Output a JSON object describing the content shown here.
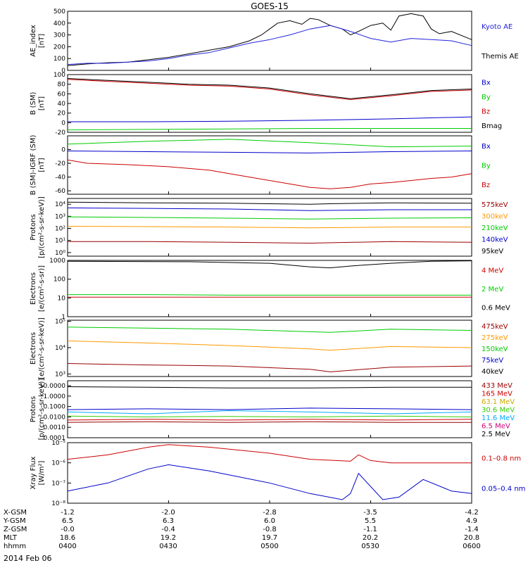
{
  "title": "GOES-15",
  "colors": {
    "black": "#000000",
    "red": "#cc0000",
    "green": "#00cc00",
    "blue": "#0000cc",
    "orange": "#ff9900",
    "dark_red": "#990000",
    "lime": "#33cc00",
    "cyan": "#00aaff",
    "gold": "#ccaa00",
    "magenta": "#cc0077",
    "ae_blue": "#2222dd"
  },
  "chart_data": [
    {
      "type": "line",
      "ylabel": [
        "AE_index",
        "[nT]"
      ],
      "scale": "linear",
      "ylim": [
        0,
        500
      ],
      "yticks": [
        0,
        100,
        200,
        300,
        400,
        500
      ],
      "legend": [
        {
          "text": "Kyoto AE",
          "color": "ae_blue"
        },
        {
          "text": "Themis AE",
          "color": "black"
        }
      ],
      "series": [
        {
          "color": "black",
          "x": [
            0,
            0.05,
            0.1,
            0.15,
            0.2,
            0.25,
            0.3,
            0.35,
            0.4,
            0.45,
            0.48,
            0.5,
            0.52,
            0.55,
            0.58,
            0.6,
            0.62,
            0.65,
            0.68,
            0.7,
            0.72,
            0.75,
            0.78,
            0.8,
            0.82,
            0.85,
            0.88,
            0.9,
            0.92,
            0.95,
            1
          ],
          "values": [
            40,
            55,
            65,
            70,
            90,
            110,
            140,
            170,
            200,
            250,
            300,
            350,
            400,
            420,
            390,
            440,
            430,
            380,
            350,
            300,
            330,
            380,
            400,
            340,
            460,
            480,
            460,
            350,
            310,
            330,
            260
          ]
        },
        {
          "color": "ae_blue",
          "x": [
            0,
            0.05,
            0.1,
            0.15,
            0.2,
            0.25,
            0.3,
            0.35,
            0.4,
            0.45,
            0.5,
            0.55,
            0.6,
            0.65,
            0.7,
            0.75,
            0.8,
            0.85,
            0.9,
            0.95,
            1
          ],
          "values": [
            50,
            60,
            60,
            70,
            80,
            100,
            130,
            150,
            190,
            230,
            260,
            300,
            350,
            380,
            330,
            270,
            240,
            270,
            260,
            250,
            210
          ]
        }
      ]
    },
    {
      "type": "line",
      "ylabel": [
        "B (SM)",
        "[nT]"
      ],
      "scale": "linear",
      "ylim": [
        -20,
        100
      ],
      "yticks": [
        -20,
        0,
        20,
        40,
        60,
        80,
        100
      ],
      "legend": [
        {
          "text": "Bx",
          "color": "blue"
        },
        {
          "text": "By",
          "color": "green"
        },
        {
          "text": "Bz",
          "color": "red"
        },
        {
          "text": "Bmag",
          "color": "black"
        }
      ],
      "series": [
        {
          "color": "black",
          "x": [
            0,
            0.1,
            0.2,
            0.3,
            0.4,
            0.5,
            0.6,
            0.7,
            0.8,
            0.9,
            1
          ],
          "values": [
            92,
            88,
            84,
            80,
            78,
            72,
            60,
            50,
            58,
            67,
            70
          ]
        },
        {
          "color": "red",
          "x": [
            0,
            0.1,
            0.2,
            0.3,
            0.4,
            0.5,
            0.6,
            0.7,
            0.8,
            0.9,
            1
          ],
          "values": [
            90,
            86,
            82,
            78,
            76,
            70,
            58,
            48,
            56,
            65,
            68
          ]
        },
        {
          "color": "blue",
          "x": [
            0,
            0.2,
            0.4,
            0.6,
            0.8,
            1
          ],
          "values": [
            2,
            2,
            3,
            5,
            8,
            12
          ]
        },
        {
          "color": "green",
          "x": [
            0,
            0.2,
            0.4,
            0.6,
            0.8,
            1
          ],
          "values": [
            -15,
            -14,
            -13,
            -12,
            -12,
            -12
          ]
        }
      ]
    },
    {
      "type": "line",
      "ylabel": [
        "B (SM)-IGRF (SM)",
        "[nT]"
      ],
      "scale": "linear",
      "ylim": [
        -65,
        20
      ],
      "yticks": [
        -60,
        -40,
        -20,
        0
      ],
      "legend": [
        {
          "text": "Bx",
          "color": "blue"
        },
        {
          "text": "By",
          "color": "green"
        },
        {
          "text": "Bz",
          "color": "red"
        }
      ],
      "series": [
        {
          "color": "green",
          "x": [
            0,
            0.2,
            0.4,
            0.6,
            0.8,
            1
          ],
          "values": [
            8,
            12,
            15,
            10,
            4,
            5
          ]
        },
        {
          "color": "blue",
          "x": [
            0,
            0.2,
            0.4,
            0.6,
            0.8,
            1
          ],
          "values": [
            -2,
            -3,
            -4,
            -5,
            -3,
            -2
          ]
        },
        {
          "color": "red",
          "x": [
            0,
            0.05,
            0.15,
            0.25,
            0.35,
            0.45,
            0.55,
            0.6,
            0.65,
            0.7,
            0.75,
            0.8,
            0.85,
            0.9,
            0.95,
            1
          ],
          "values": [
            -15,
            -20,
            -22,
            -25,
            -30,
            -40,
            -50,
            -55,
            -57,
            -55,
            -50,
            -48,
            -45,
            -42,
            -40,
            -35
          ]
        }
      ]
    },
    {
      "type": "line",
      "ylabel": [
        "Protons",
        "[p/(cm²-s-sr-keV)]"
      ],
      "scale": "log",
      "ylim": [
        0.5,
        30000
      ],
      "yticks": [
        1,
        10,
        100,
        1000,
        10000
      ],
      "yticklabels": [
        "10⁰",
        "10¹",
        "10²",
        "10³",
        "10⁴"
      ],
      "legend": [
        {
          "text": "575keV",
          "color": "dark_red"
        },
        {
          "text": "300keV",
          "color": "orange"
        },
        {
          "text": "210keV",
          "color": "green"
        },
        {
          "text": "140keV",
          "color": "blue"
        },
        {
          "text": "95keV",
          "color": "black"
        }
      ],
      "series": [
        {
          "color": "black",
          "x": [
            0,
            0.2,
            0.4,
            0.6,
            0.65,
            0.8,
            1
          ],
          "values": [
            15000,
            13000,
            12000,
            10000,
            11000,
            13000,
            12000
          ]
        },
        {
          "color": "blue",
          "x": [
            0,
            0.2,
            0.4,
            0.6,
            0.8,
            1
          ],
          "values": [
            5000,
            4500,
            4000,
            3000,
            3500,
            3500
          ]
        },
        {
          "color": "green",
          "x": [
            0,
            0.2,
            0.4,
            0.6,
            0.8,
            1
          ],
          "values": [
            900,
            800,
            700,
            600,
            700,
            750
          ]
        },
        {
          "color": "orange",
          "x": [
            0,
            0.2,
            0.4,
            0.6,
            0.8,
            1
          ],
          "values": [
            150,
            140,
            130,
            110,
            130,
            130
          ]
        },
        {
          "color": "dark_red",
          "x": [
            0,
            0.2,
            0.4,
            0.6,
            0.8,
            1
          ],
          "values": [
            8,
            8,
            7,
            6,
            8,
            7
          ]
        }
      ]
    },
    {
      "type": "line",
      "ylabel": [
        "Electrons",
        "[e/(cm²-s-sr)]"
      ],
      "scale": "log",
      "ylim": [
        1,
        1000
      ],
      "yticks": [
        1,
        10,
        100,
        1000
      ],
      "yticklabels": [
        "1",
        "10",
        "100",
        "1000"
      ],
      "legend": [
        {
          "text": "4 MeV",
          "color": "red"
        },
        {
          "text": "2 MeV",
          "color": "green"
        },
        {
          "text": "0.6 MeV",
          "color": "black"
        }
      ],
      "series": [
        {
          "color": "black",
          "x": [
            0,
            0.3,
            0.5,
            0.6,
            0.65,
            0.7,
            0.8,
            0.9,
            1
          ],
          "values": [
            900,
            850,
            700,
            450,
            400,
            500,
            700,
            900,
            950
          ]
        },
        {
          "color": "green",
          "x": [
            0,
            0.2,
            0.4,
            0.6,
            0.8,
            1
          ],
          "values": [
            15,
            15,
            14,
            14,
            14,
            14
          ]
        },
        {
          "color": "red",
          "x": [
            0,
            0.2,
            0.4,
            0.6,
            0.8,
            1
          ],
          "values": [
            11,
            11,
            11,
            11,
            11,
            11
          ]
        }
      ]
    },
    {
      "type": "line",
      "ylabel": [
        "Electrons",
        "[e/(cm²-s-sr-keV)]"
      ],
      "scale": "log",
      "ylim": [
        800,
        110000
      ],
      "yticks": [
        1000,
        10000,
        100000
      ],
      "yticklabels": [
        "10³",
        "10⁴",
        "10⁵"
      ],
      "legend": [
        {
          "text": "475keV",
          "color": "dark_red"
        },
        {
          "text": "275keV",
          "color": "orange"
        },
        {
          "text": "150keV",
          "color": "green"
        },
        {
          "text": "75keV",
          "color": "blue"
        },
        {
          "text": "40keV",
          "color": "black"
        }
      ],
      "series": [
        {
          "color": "green",
          "x": [
            0,
            0.2,
            0.4,
            0.6,
            0.65,
            0.8,
            1
          ],
          "values": [
            60000,
            55000,
            50000,
            40000,
            38000,
            50000,
            45000
          ]
        },
        {
          "color": "orange",
          "x": [
            0,
            0.2,
            0.4,
            0.6,
            0.65,
            0.8,
            1
          ],
          "values": [
            18000,
            15000,
            12000,
            9000,
            8000,
            11000,
            10000
          ]
        },
        {
          "color": "dark_red",
          "x": [
            0,
            0.2,
            0.4,
            0.6,
            0.65,
            0.8,
            1
          ],
          "values": [
            2500,
            2200,
            2000,
            1500,
            1200,
            1800,
            2000
          ]
        }
      ]
    },
    {
      "type": "line",
      "ylabel": [
        "Protons",
        "[p/(cm²-s-sr-keV)]"
      ],
      "scale": "log",
      "ylim": [
        0.0001,
        30
      ],
      "yticks": [
        0.0001,
        0.001,
        0.01,
        0.1,
        1,
        10
      ],
      "yticklabels": [
        "0.0001",
        "0.0010",
        "0.0100",
        "0.1000",
        "1.0000",
        "10.0000"
      ],
      "legend": [
        {
          "text": "433 MeV",
          "color": "dark_red"
        },
        {
          "text": "165 MeV",
          "color": "red"
        },
        {
          "text": "63.1 MeV",
          "color": "gold"
        },
        {
          "text": "30.6 MeV",
          "color": "lime"
        },
        {
          "text": "11.6 MeV",
          "color": "cyan"
        },
        {
          "text": "6.5 MeV",
          "color": "magenta"
        },
        {
          "text": "2.5 MeV",
          "color": "black"
        }
      ],
      "series": [
        {
          "color": "black",
          "x": [
            0,
            0.2,
            0.4,
            0.6,
            0.8,
            1
          ],
          "values": [
            8,
            7,
            6,
            6,
            7,
            7
          ]
        },
        {
          "color": "blue",
          "x": [
            0,
            0.2,
            0.4,
            0.6,
            0.8,
            1
          ],
          "values": [
            0.05,
            0.06,
            0.05,
            0.07,
            0.06,
            0.05
          ]
        },
        {
          "color": "cyan",
          "x": [
            0,
            0.2,
            0.4,
            0.6,
            0.8,
            1
          ],
          "values": [
            0.03,
            0.02,
            0.04,
            0.03,
            0.02,
            0.03
          ]
        },
        {
          "color": "lime",
          "x": [
            0,
            0.2,
            0.4,
            0.6,
            0.8,
            1
          ],
          "values": [
            0.012,
            0.01,
            0.011,
            0.01,
            0.012,
            0.01
          ]
        },
        {
          "color": "red",
          "x": [
            0,
            0.2,
            0.4,
            0.6,
            0.8,
            1
          ],
          "values": [
            0.005,
            0.006,
            0.005,
            0.006,
            0.005,
            0.006
          ]
        },
        {
          "color": "dark_red",
          "x": [
            0,
            0.2,
            0.4,
            0.6,
            0.8,
            1
          ],
          "values": [
            0.003,
            0.0035,
            0.003,
            0.0035,
            0.003,
            0.003
          ]
        }
      ]
    },
    {
      "type": "line",
      "ylabel": [
        "Xray Flux",
        "[W/m²]"
      ],
      "scale": "log",
      "ylim": [
        1e-08,
        1e-05
      ],
      "yticks": [
        1e-08,
        1e-07,
        1e-06,
        1e-05
      ],
      "yticklabels": [
        "10⁻⁸",
        "10⁻⁷",
        "10⁻⁶",
        "10⁻⁵"
      ],
      "legend": [
        {
          "text": "0.1–0.8 nm",
          "color": "red"
        },
        {
          "text": "0.05–0.4 nm",
          "color": "blue"
        }
      ],
      "series": [
        {
          "color": "red",
          "x": [
            0,
            0.1,
            0.2,
            0.25,
            0.35,
            0.5,
            0.6,
            0.7,
            0.72,
            0.75,
            0.8,
            0.9,
            1
          ],
          "values": [
            1.5e-06,
            2.5e-06,
            6e-06,
            8e-06,
            6e-06,
            3e-06,
            1.5e-06,
            1.2e-06,
            2.5e-06,
            1.3e-06,
            1e-06,
            1e-06,
            1e-06
          ]
        },
        {
          "color": "blue",
          "x": [
            0,
            0.1,
            0.2,
            0.25,
            0.35,
            0.5,
            0.6,
            0.68,
            0.7,
            0.72,
            0.78,
            0.82,
            0.88,
            0.95,
            1
          ],
          "values": [
            4e-08,
            1e-07,
            5e-07,
            8e-07,
            4e-07,
            1e-07,
            3e-08,
            1.5e-08,
            3e-08,
            3e-07,
            1.5e-08,
            2e-08,
            1.5e-07,
            4e-08,
            3e-08
          ]
        }
      ]
    }
  ],
  "x_axis": {
    "rows": [
      {
        "label": "X-GSM",
        "values": [
          "-1.2",
          "-2.0",
          "-2.8",
          "-3.5",
          "-4.2"
        ]
      },
      {
        "label": "Y-GSM",
        "values": [
          "6.5",
          "6.3",
          "6.0",
          "5.5",
          "4.9"
        ]
      },
      {
        "label": "Z-GSM",
        "values": [
          "-0.0",
          "-0.4",
          "-0.8",
          "-1.1",
          "-1.4"
        ]
      },
      {
        "label": "MLT",
        "values": [
          "18.6",
          "19.2",
          "19.7",
          "20.2",
          "20.8"
        ]
      },
      {
        "label": "hhmm",
        "values": [
          "0400",
          "0430",
          "0500",
          "0530",
          "0600"
        ]
      }
    ],
    "date": "2014 Feb 06"
  }
}
